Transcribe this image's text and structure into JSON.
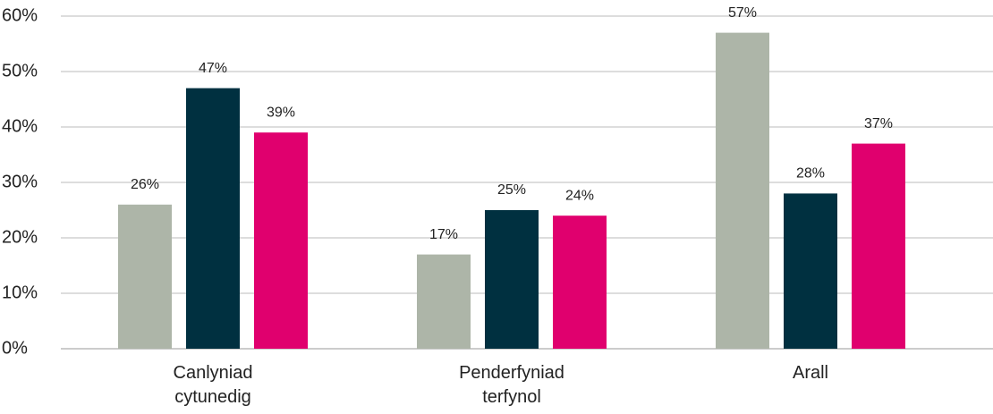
{
  "chart_data": {
    "type": "bar",
    "categories": [
      "Canlyniad cytunedig",
      "Penderfyniad terfynol",
      "Arall"
    ],
    "series": [
      {
        "color": "#adb5a8",
        "values": [
          26,
          17,
          57
        ],
        "value_labels": [
          "26%",
          "17%",
          "57%"
        ]
      },
      {
        "color": "#003040",
        "values": [
          47,
          25,
          28
        ],
        "value_labels": [
          "47%",
          "25%",
          "28%"
        ]
      },
      {
        "color": "#e0006e",
        "values": [
          39,
          24,
          37
        ],
        "value_labels": [
          "39%",
          "24%",
          "37%"
        ]
      }
    ],
    "ylim": [
      0,
      60
    ],
    "yticks": [
      {
        "value": 0,
        "label": "0%"
      },
      {
        "value": 10,
        "label": "10%"
      },
      {
        "value": 20,
        "label": "20%"
      },
      {
        "value": 30,
        "label": "30%"
      },
      {
        "value": 40,
        "label": "40%"
      },
      {
        "value": 50,
        "label": "50%"
      },
      {
        "value": 60,
        "label": "60%"
      }
    ],
    "grid": true
  }
}
